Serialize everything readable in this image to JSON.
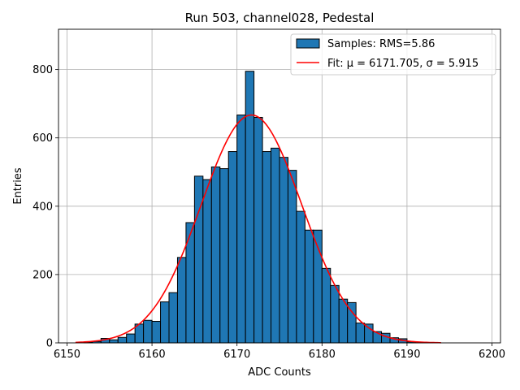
{
  "chart_data": {
    "type": "bar",
    "title": "Run 503, channel028, Pedestal",
    "xlabel": "ADC Counts",
    "ylabel": "Entries",
    "xlim": [
      6149,
      6201
    ],
    "ylim": [
      0,
      918
    ],
    "xticks": [
      6150,
      6160,
      6170,
      6180,
      6190,
      6200
    ],
    "yticks": [
      0,
      200,
      400,
      600,
      800
    ],
    "grid": true,
    "legend_position": "top-right",
    "colors": {
      "bars": "#1f77b4",
      "bar_edge": "#000000",
      "fit": "#ff0000"
    },
    "series": [
      {
        "name": "Samples: RMS=5.86",
        "kind": "histogram",
        "bin_width": 1,
        "x": [
          6151,
          6152,
          6153,
          6154,
          6155,
          6156,
          6157,
          6158,
          6159,
          6160,
          6161,
          6162,
          6163,
          6164,
          6165,
          6166,
          6167,
          6168,
          6169,
          6170,
          6171,
          6172,
          6173,
          6174,
          6175,
          6176,
          6177,
          6178,
          6179,
          6180,
          6181,
          6182,
          6183,
          6184,
          6185,
          6186,
          6187,
          6188,
          6189,
          6190,
          6191,
          6192,
          6193
        ],
        "values": [
          0,
          2,
          4,
          13,
          9,
          16,
          26,
          55,
          66,
          63,
          120,
          147,
          250,
          352,
          488,
          478,
          515,
          510,
          560,
          667,
          795,
          660,
          560,
          570,
          543,
          505,
          385,
          330,
          330,
          218,
          168,
          128,
          118,
          58,
          55,
          33,
          28,
          15,
          12,
          3,
          2,
          1,
          0
        ]
      },
      {
        "name": "Fit: μ = 6171.705, σ = 5.915",
        "kind": "gaussian",
        "mu": 6171.705,
        "sigma": 5.915,
        "amplitude": 667,
        "x_range": [
          6151,
          6194
        ]
      }
    ]
  }
}
